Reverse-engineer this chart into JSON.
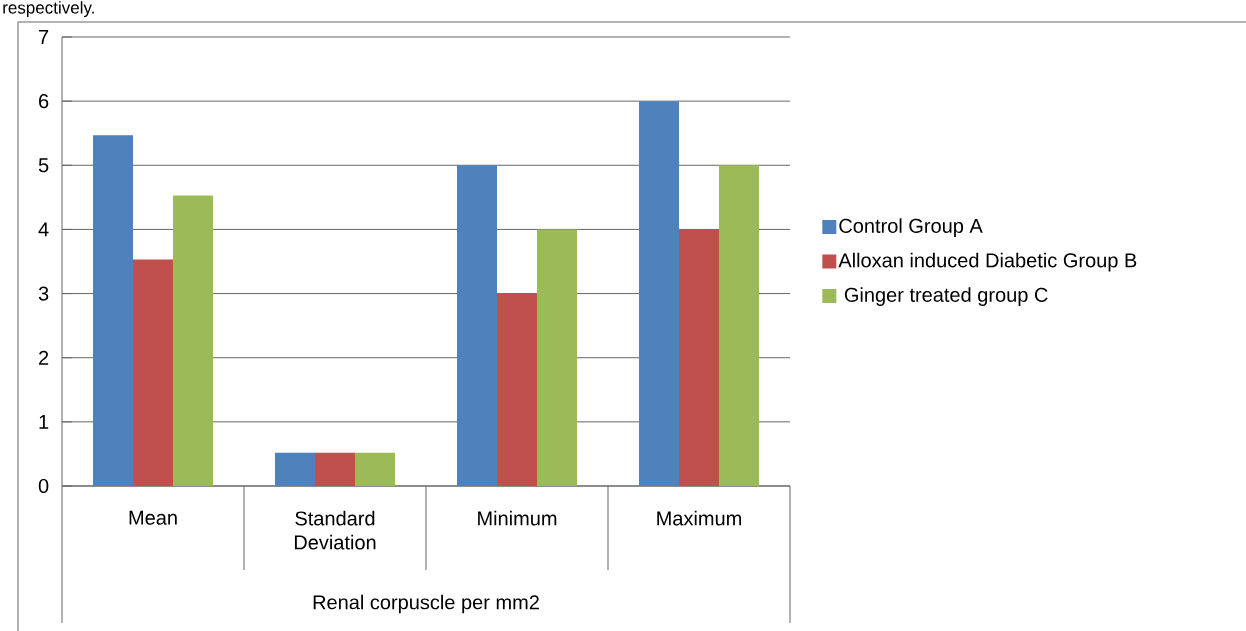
{
  "chart_data": {
    "type": "bar",
    "categories": [
      "Mean",
      "Standard Deviation",
      "Minimum",
      "Maximum"
    ],
    "xlabel": "Renal corpuscle  per mm2",
    "series": [
      {
        "name": "Control  Group A",
        "color": "#4f81bd",
        "values": [
          5.47,
          0.52,
          5,
          6
        ]
      },
      {
        "name": "Alloxan induced Diabetic Group B",
        "color": "#c0504d",
        "values": [
          3.53,
          0.52,
          3,
          4
        ]
      },
      {
        "name": " Ginger treated group C",
        "color": "#9bbb59",
        "values": [
          4.53,
          0.52,
          4,
          5
        ]
      }
    ],
    "ylim": [
      0,
      7
    ],
    "yticks": [
      0,
      1,
      2,
      3,
      4,
      5,
      6,
      7
    ],
    "grid": "y",
    "legend": "right",
    "annotations": [
      "respectively."
    ]
  }
}
